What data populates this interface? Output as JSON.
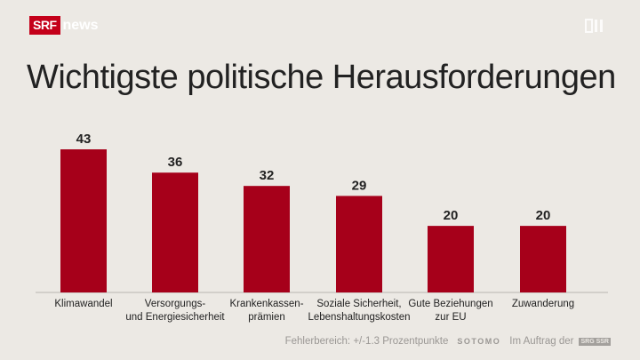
{
  "header": {
    "brand_box": "SRF",
    "brand_word": "news",
    "tv_icon": "broadcast-icon"
  },
  "chart_data": {
    "type": "bar",
    "title": "Wichtigste politische Herausforderungen",
    "categories": [
      [
        "Klimawandel"
      ],
      [
        "Versorgungs-",
        "und Energiesicherheit"
      ],
      [
        "Krankenkassen-",
        "prämien"
      ],
      [
        "Soziale Sicherheit,",
        "Lebenshaltungskosten"
      ],
      [
        "Gute Beziehungen",
        "zur EU"
      ],
      [
        "Zuwanderung"
      ]
    ],
    "values": [
      43,
      36,
      32,
      29,
      20,
      20
    ],
    "ylim": [
      0,
      43
    ],
    "bar_color": "#a6001a",
    "grid": false
  },
  "footer": {
    "error_margin": "Fehlerbereich: +/-1.3 Prozentpunkte",
    "institute": "SOTOMO",
    "commission": "Im Auftrag der",
    "badge": "SRG SSR"
  }
}
